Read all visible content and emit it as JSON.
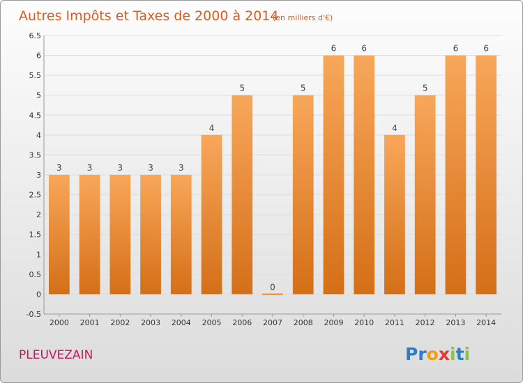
{
  "chart_data": {
    "type": "bar",
    "title": "Autres Impôts et Taxes de 2000 à 2014",
    "subtitle": "(en milliers d'€)",
    "xlabel": "",
    "ylabel": "",
    "categories": [
      "2000",
      "2001",
      "2002",
      "2003",
      "2004",
      "2005",
      "2006",
      "2007",
      "2008",
      "2009",
      "2010",
      "2011",
      "2012",
      "2013",
      "2014"
    ],
    "values": [
      3,
      3,
      3,
      3,
      3,
      4,
      5,
      0,
      5,
      6,
      6,
      4,
      5,
      6,
      6
    ],
    "data_labels": [
      "3",
      "3",
      "3",
      "3",
      "3",
      "4",
      "5",
      "0",
      "5",
      "6",
      "6",
      "4",
      "5",
      "6",
      "6"
    ],
    "ylim": [
      -0.5,
      6.5
    ],
    "yticks": [
      -0.5,
      0,
      0.5,
      1,
      1.5,
      2,
      2.5,
      3,
      3.5,
      4,
      4.5,
      5,
      5.5,
      6,
      6.5
    ],
    "ytick_labels": [
      "-0.5",
      "0",
      "0.5",
      "1",
      "1.5",
      "2",
      "2.5",
      "3",
      "3.5",
      "4",
      "4.5",
      "5",
      "5.5",
      "6",
      "6.5"
    ],
    "grid": true,
    "legend": "none"
  },
  "footer": {
    "commune": "PLEUVEZAIN",
    "logo_letters": [
      "P",
      "r",
      "o",
      "x",
      "i",
      "t",
      "i"
    ]
  },
  "colors": {
    "bar_light": "#f8a75a",
    "bar_dark": "#d46f17",
    "title": "#e05a1e",
    "commune": "#c2185b",
    "grid": "#dddddd",
    "logo": [
      "#2e7dc6",
      "#2e7dc6",
      "#f39c12",
      "#e53935",
      "#8bc34a",
      "#2e7dc6",
      "#8bc34a"
    ]
  }
}
